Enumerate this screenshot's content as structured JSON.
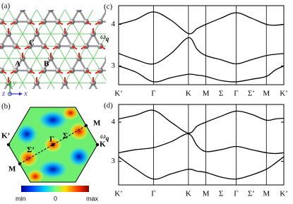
{
  "panels": {
    "a": {
      "label": "(a)",
      "sites": [
        "C",
        "A",
        "B"
      ],
      "axes": [
        "y",
        "z",
        "x"
      ]
    },
    "b": {
      "label": "(b)",
      "points": [
        "M",
        "K’",
        "Γ",
        "Σ",
        "Σ’",
        "K",
        "M"
      ],
      "colorbar": [
        "min",
        "0",
        "max"
      ]
    }
  },
  "chart_data": [
    {
      "type": "line",
      "panel_label": "(c)",
      "ylabel": {
        "text": "ω",
        "subscript": "q"
      },
      "x": [
        0,
        0.5,
        1,
        1.5,
        2,
        2.25,
        2.5,
        2.933,
        3.366,
        3.799,
        4.232,
        4.482,
        4.732
      ],
      "xlim": [
        0,
        4.732
      ],
      "xticks": [
        {
          "value": 0,
          "label": "K’"
        },
        {
          "value": 1,
          "label": "Γ"
        },
        {
          "value": 2,
          "label": "K"
        },
        {
          "value": 2.5,
          "label": "M"
        },
        {
          "value": 2.933,
          "label": "Σ"
        },
        {
          "value": 3.366,
          "label": "Γ"
        },
        {
          "value": 3.799,
          "label": "Σ’"
        },
        {
          "value": 4.232,
          "label": "M"
        },
        {
          "value": 4.732,
          "label": "K’"
        }
      ],
      "ylim": [
        2.55,
        4.45
      ],
      "yticks": [
        3,
        4
      ],
      "color": "#000000",
      "series": [
        {
          "values": [
            4.0,
            4.12,
            4.3,
            4.1,
            3.78,
            3.9,
            4.0,
            4.15,
            4.28,
            4.15,
            4.0,
            3.98,
            4.0
          ]
        },
        {
          "values": [
            3.3,
            3.15,
            3.05,
            3.3,
            3.68,
            3.4,
            3.25,
            3.15,
            3.05,
            3.15,
            3.25,
            3.28,
            3.3
          ]
        },
        {
          "values": [
            3.0,
            2.85,
            2.62,
            2.72,
            2.8,
            2.78,
            2.75,
            2.65,
            2.62,
            2.68,
            2.75,
            2.9,
            3.0
          ]
        }
      ]
    },
    {
      "type": "line",
      "panel_label": "(d)",
      "ylabel": {
        "text": "ω",
        "subscript": "q"
      },
      "x": [
        0,
        0.5,
        1,
        1.5,
        2,
        2.25,
        2.5,
        2.933,
        3.366,
        3.799,
        4.232,
        4.482,
        4.732
      ],
      "xlim": [
        0,
        4.732
      ],
      "xticks": [
        {
          "value": 0,
          "label": "K’"
        },
        {
          "value": 1,
          "label": "Γ"
        },
        {
          "value": 2,
          "label": "K"
        },
        {
          "value": 2.5,
          "label": "M"
        },
        {
          "value": 2.933,
          "label": "Σ"
        },
        {
          "value": 3.366,
          "label": "Γ"
        },
        {
          "value": 3.799,
          "label": "Σ’"
        },
        {
          "value": 4.232,
          "label": "M"
        },
        {
          "value": 4.732,
          "label": "K’"
        }
      ],
      "ylim": [
        2.4,
        4.45
      ],
      "yticks": [
        3,
        4
      ],
      "color": "#000000",
      "series": [
        {
          "values": [
            4.08,
            4.18,
            4.3,
            4.0,
            3.72,
            3.9,
            4.0,
            4.15,
            4.28,
            4.2,
            4.05,
            4.08,
            4.1
          ]
        },
        {
          "values": [
            3.22,
            3.3,
            3.35,
            3.5,
            3.7,
            3.4,
            3.25,
            3.3,
            3.38,
            3.3,
            3.22,
            3.2,
            3.22
          ]
        },
        {
          "values": [
            3.12,
            2.8,
            2.55,
            2.68,
            2.8,
            2.75,
            2.72,
            2.6,
            2.55,
            2.65,
            2.8,
            2.95,
            3.12
          ]
        }
      ]
    }
  ]
}
